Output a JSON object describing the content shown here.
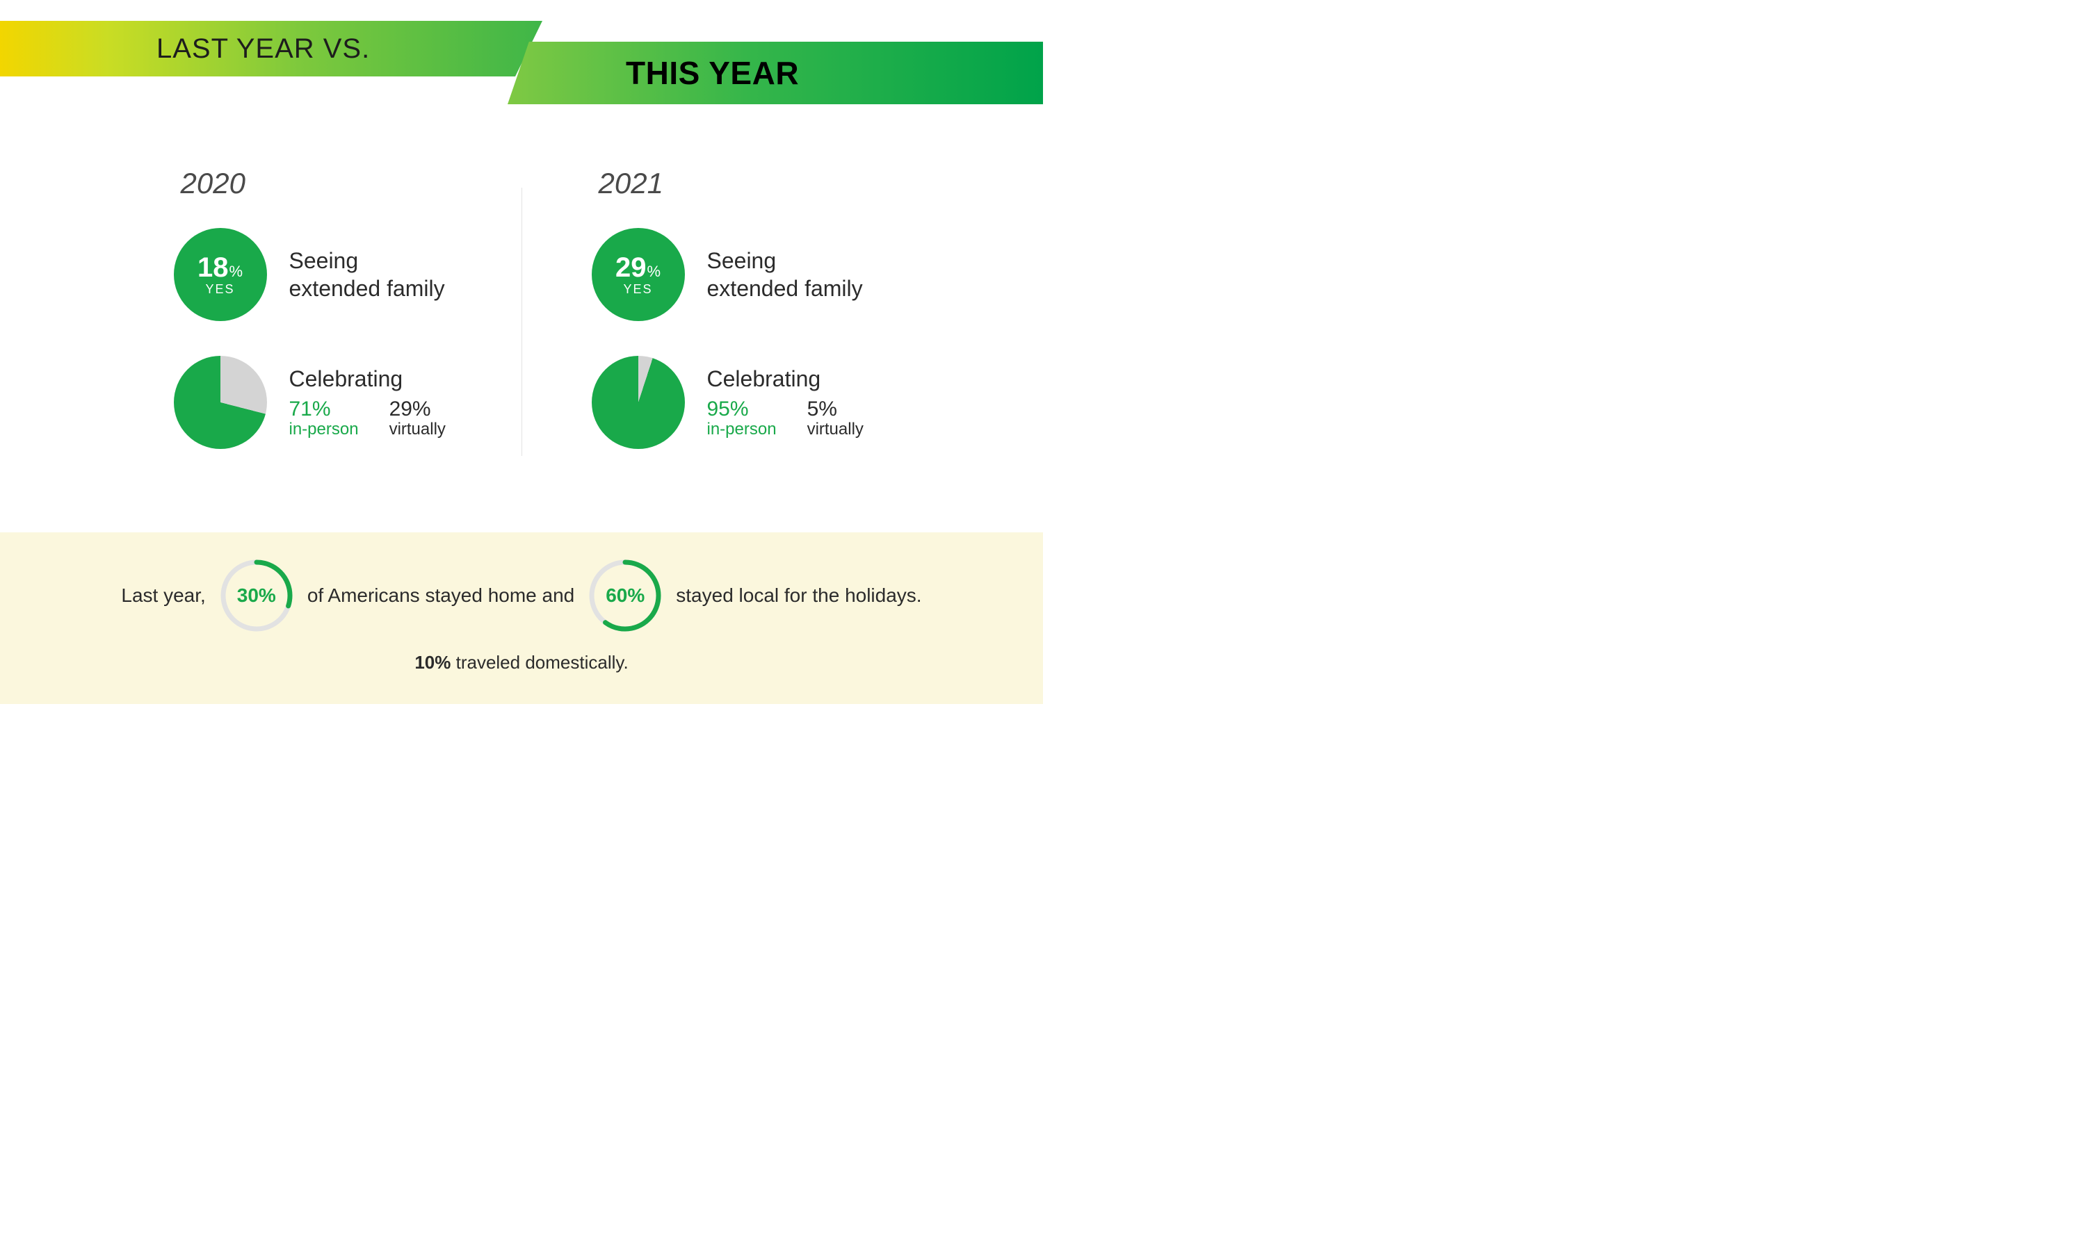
{
  "colors": {
    "accent_green": "#19a94a",
    "pie_fill": "#19a94a",
    "pie_empty": "#d4d4d4",
    "donut_track": "#e2e2e2",
    "donut_fill": "#19a94a",
    "footer_bg": "#fbf7dd",
    "text_dark": "#2b2b2b"
  },
  "header": {
    "left_label": "LAST YEAR VS.",
    "right_label": "THIS YEAR",
    "left_gradient": [
      "#f2d600",
      "#c9dd24",
      "#7ec93c",
      "#3fb648"
    ],
    "right_gradient": [
      "#7fc943",
      "#35b64a",
      "#00a34a"
    ]
  },
  "left": {
    "year": "2020",
    "badge_pct": "18",
    "badge_symbol": "%",
    "badge_yes": "YES",
    "badge_text_line1": "Seeing",
    "badge_text_line2": "extended family",
    "pie_pct": 71,
    "celebrating_label": "Celebrating",
    "inperson_pct": "71%",
    "inperson_label": "in-person",
    "virtual_pct": "29%",
    "virtual_label": "virtually"
  },
  "right": {
    "year": "2021",
    "badge_pct": "29",
    "badge_symbol": "%",
    "badge_yes": "YES",
    "badge_text_line1": "Seeing",
    "badge_text_line2": "extended family",
    "pie_pct": 95,
    "celebrating_label": "Celebrating",
    "inperson_pct": "95%",
    "inperson_label": "in-person",
    "virtual_pct": "5%",
    "virtual_label": "virtually"
  },
  "footer": {
    "seg1": "Last year,",
    "donut1_pct": 30,
    "donut1_label": "30%",
    "seg2": "of Americans stayed home and",
    "donut2_pct": 60,
    "donut2_label": "60%",
    "seg3": "stayed local for the holidays.",
    "line2_bold": "10%",
    "line2_rest": " traveled domestically."
  }
}
